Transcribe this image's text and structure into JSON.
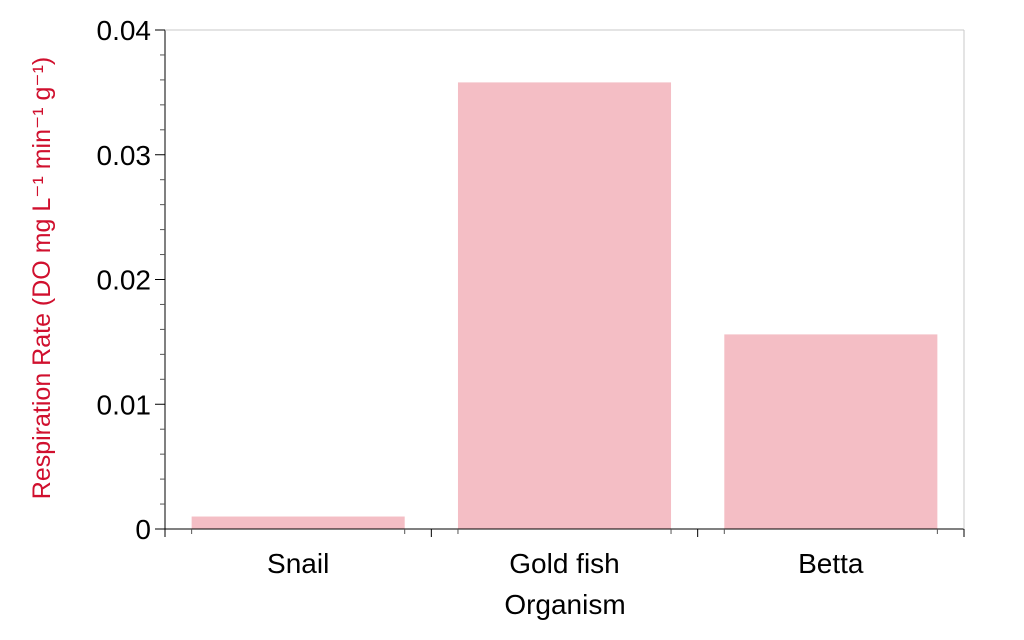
{
  "chart_data": {
    "type": "bar",
    "title": "",
    "categories": [
      "Snail",
      "Gold fish",
      "Betta"
    ],
    "values": [
      0.001,
      0.0358,
      0.0156
    ],
    "xlabel": "Organism",
    "ylabel": "Respiration Rate  (DO mg L⁻¹ min⁻¹ g⁻¹)",
    "ylim": [
      0,
      0.04
    ],
    "yticks": [
      "0",
      "0.01",
      "0.02",
      "0.03",
      "0.04"
    ],
    "grid": false,
    "legend": "none",
    "bar_color": "#f4bec5",
    "ylabel_color": "#d0102e"
  }
}
